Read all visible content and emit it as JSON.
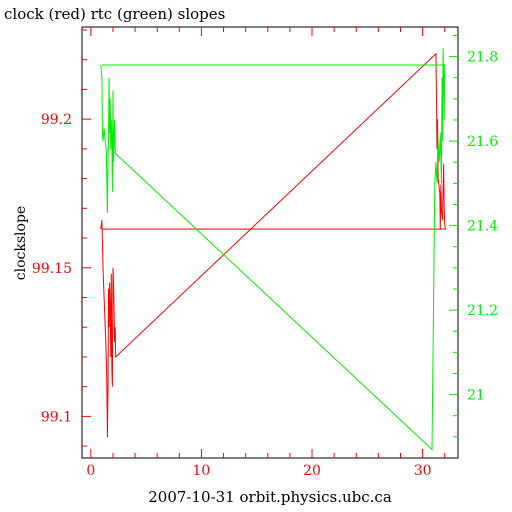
{
  "chart_data": {
    "type": "line",
    "title": "clock (red) rtc (green) slopes",
    "xlabel": "2007-10-31 orbit.physics.ubc.ca",
    "ylabel": "clockslope",
    "xlim": [
      -0.8,
      33.2
    ],
    "ylim_left": [
      99.086,
      99.231
    ],
    "ylim_right": [
      20.85,
      21.87
    ],
    "x_ticks": [
      0,
      10,
      20,
      30
    ],
    "x_tick_labels": [
      "0",
      "10",
      "20",
      "30"
    ],
    "y_left_ticks": [
      99.1,
      99.15,
      99.2
    ],
    "y_left_tick_labels": [
      "99.1",
      "99.15",
      "99.2"
    ],
    "y_right_ticks": [
      21.0,
      21.2,
      21.4,
      21.6,
      21.8
    ],
    "y_right_tick_labels": [
      "21",
      "21.2",
      "21.4",
      "21.6",
      "21.8"
    ],
    "colors": {
      "clock": "#ff0000",
      "rtc": "#00ee00",
      "axis": "#000000"
    },
    "series": [
      {
        "key": "clock",
        "axis": "left",
        "x": [
          0.9,
          1.0,
          1.05,
          1.1,
          1.2,
          1.3,
          1.4,
          1.45,
          1.5,
          1.55,
          1.6,
          1.65,
          1.7,
          1.75,
          1.8,
          1.85,
          1.9,
          1.95,
          2.0,
          2.05,
          2.1,
          2.15,
          2.2,
          2.25,
          31.2,
          31.25,
          31.3,
          31.35,
          31.4,
          31.5,
          31.55,
          31.6,
          31.65,
          31.7,
          31.8,
          31.9,
          31.95,
          32.0,
          32.05,
          31.95,
          31.6,
          1.0
        ],
        "y": [
          99.163,
          99.166,
          99.158,
          99.15,
          99.14,
          99.13,
          99.12,
          99.11,
          99.093,
          99.11,
          99.143,
          99.13,
          99.145,
          99.137,
          99.12,
          99.148,
          99.115,
          99.11,
          99.15,
          99.145,
          99.135,
          99.125,
          99.13,
          99.12,
          99.222,
          99.21,
          99.19,
          99.2,
          99.18,
          99.177,
          99.175,
          99.163,
          99.178,
          99.17,
          99.166,
          99.185,
          99.17,
          99.165,
          99.163,
          99.163,
          99.163,
          99.163
        ]
      },
      {
        "key": "rtc",
        "axis": "right",
        "x": [
          0.9,
          1.0,
          1.05,
          1.1,
          1.2,
          1.3,
          1.4,
          1.5,
          1.55,
          1.6,
          1.65,
          1.7,
          1.75,
          1.8,
          1.85,
          1.9,
          1.95,
          2.0,
          2.05,
          2.1,
          2.15,
          2.2,
          2.25,
          30.85,
          30.9,
          31.1,
          31.2,
          31.3,
          31.4,
          31.5,
          31.6,
          31.7,
          31.75,
          31.8,
          31.85,
          31.9,
          31.95,
          32.0,
          31.9,
          31.0,
          1.0
        ],
        "y": [
          21.78,
          21.75,
          21.62,
          21.6,
          21.63,
          21.6,
          21.58,
          21.43,
          21.55,
          21.6,
          21.75,
          21.62,
          21.7,
          21.58,
          21.65,
          21.6,
          21.48,
          21.72,
          21.55,
          21.6,
          21.65,
          21.58,
          21.57,
          20.87,
          21.0,
          21.5,
          21.55,
          21.5,
          21.6,
          21.55,
          21.62,
          21.5,
          21.75,
          21.6,
          21.82,
          21.75,
          21.65,
          21.78,
          21.78,
          21.78,
          21.78
        ]
      }
    ]
  }
}
